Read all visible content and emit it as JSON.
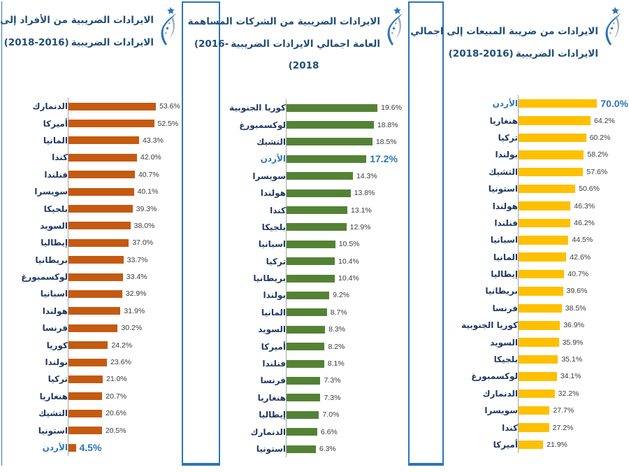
{
  "page": {
    "background": "#FFFFFF",
    "frame_color": "#2E75B6",
    "label_color": "#1F3864",
    "value_color": "#3A3A3A",
    "title_color": "#1F4E79",
    "highlight_color": "#2E75B6"
  },
  "icons": {
    "logo": "org-logo-icon",
    "logo_colors": [
      "#2E75B6",
      "#9FB1BC"
    ]
  },
  "chart_data": [
    {
      "type": "bar",
      "orientation": "horizontal",
      "legend": "none",
      "grid": false,
      "title_lines": [
        {
          "rtl": "الايرادات الضريبية من الأفراد إلى اجمالي",
          "ltr": ""
        },
        {
          "rtl": "الايرادات الضريبية",
          "ltr": "(2018-2016)"
        }
      ],
      "bar_color": "#C55A11",
      "xlim": [
        0,
        66
      ],
      "rows": [
        {
          "label": "الدنمارك",
          "value": 53.6,
          "display": "53.6%",
          "highlight": false
        },
        {
          "label": "أميركا",
          "value": 52.5,
          "display": "52.5%",
          "highlight": false
        },
        {
          "label": "المانيا",
          "value": 43.3,
          "display": "43.3%",
          "highlight": false
        },
        {
          "label": "كندا",
          "value": 42.0,
          "display": "42.0%",
          "highlight": false
        },
        {
          "label": "فنلندا",
          "value": 40.7,
          "display": "40.7%",
          "highlight": false
        },
        {
          "label": "سويسرا",
          "value": 40.1,
          "display": "40.1%",
          "highlight": false
        },
        {
          "label": "بلجيكا",
          "value": 39.3,
          "display": "39.3%",
          "highlight": false
        },
        {
          "label": "السويد",
          "value": 38.0,
          "display": "38.0%",
          "highlight": false
        },
        {
          "label": "إيطاليا",
          "value": 37.0,
          "display": "37.0%",
          "highlight": false
        },
        {
          "label": "بريطانيا",
          "value": 33.7,
          "display": "33.7%",
          "highlight": false
        },
        {
          "label": "لوكسمبورغ",
          "value": 33.4,
          "display": "33.4%",
          "highlight": false
        },
        {
          "label": "اسبانيا",
          "value": 32.9,
          "display": "32.9%",
          "highlight": false
        },
        {
          "label": "هولندا",
          "value": 31.9,
          "display": "31.9%",
          "highlight": false
        },
        {
          "label": "فرنسا",
          "value": 30.2,
          "display": "30.2%",
          "highlight": false
        },
        {
          "label": "كوريا",
          "value": 24.2,
          "display": "24.2%",
          "highlight": false
        },
        {
          "label": "بولندا",
          "value": 23.6,
          "display": "23.6%",
          "highlight": false
        },
        {
          "label": "تركيا",
          "value": 21.0,
          "display": "21.0%",
          "highlight": false
        },
        {
          "label": "هنغاريا",
          "value": 20.7,
          "display": "20.7%",
          "highlight": false
        },
        {
          "label": "التشيك",
          "value": 20.6,
          "display": "20.6%",
          "highlight": false
        },
        {
          "label": "استونيا",
          "value": 20.5,
          "display": "20.5%",
          "highlight": false
        },
        {
          "label": "الأردن",
          "value": 4.5,
          "display": "4.5%",
          "highlight": true
        }
      ]
    },
    {
      "type": "bar",
      "orientation": "horizontal",
      "legend": "none",
      "grid": false,
      "title_lines": [
        {
          "rtl": "الايرادات الضريبية من الشركات المساهمة",
          "ltr": ""
        },
        {
          "rtl": "العامة اجمالي الايرادات الضريبية",
          "ltr": "(2016-"
        },
        {
          "rtl": "",
          "ltr": "(2018"
        }
      ],
      "bar_color": "#548235",
      "xlim": [
        0,
        25
      ],
      "rows": [
        {
          "label": "كوريا الجنوبية",
          "value": 19.6,
          "display": "19.6%",
          "highlight": false
        },
        {
          "label": "لوكسمبورغ",
          "value": 18.8,
          "display": "18.8%",
          "highlight": false
        },
        {
          "label": "التشيك",
          "value": 18.5,
          "display": "18.5%",
          "highlight": false
        },
        {
          "label": "الأردن",
          "value": 17.2,
          "display": "17.2%",
          "highlight": true
        },
        {
          "label": "سويسرا",
          "value": 14.3,
          "display": "14.3%",
          "highlight": false
        },
        {
          "label": "هولندا",
          "value": 13.8,
          "display": "13.8%",
          "highlight": false
        },
        {
          "label": "كندا",
          "value": 13.1,
          "display": "13.1%",
          "highlight": false
        },
        {
          "label": "بلجيكا",
          "value": 12.9,
          "display": "12.9%",
          "highlight": false
        },
        {
          "label": "اسبانيا",
          "value": 10.5,
          "display": "10.5%",
          "highlight": false
        },
        {
          "label": "تركيا",
          "value": 10.4,
          "display": "10.4%",
          "highlight": false
        },
        {
          "label": "بريطانيا",
          "value": 10.4,
          "display": "10.4%",
          "highlight": false
        },
        {
          "label": "بولندا",
          "value": 9.2,
          "display": "9.2%",
          "highlight": false
        },
        {
          "label": "المانيا",
          "value": 8.7,
          "display": "8.7%",
          "highlight": false
        },
        {
          "label": "السويد",
          "value": 8.3,
          "display": "8.3%",
          "highlight": false
        },
        {
          "label": "أميركا",
          "value": 8.2,
          "display": "8.2%",
          "highlight": false
        },
        {
          "label": "فنلندا",
          "value": 8.1,
          "display": "8.1%",
          "highlight": false
        },
        {
          "label": "فرنسا",
          "value": 7.3,
          "display": "7.3%",
          "highlight": false
        },
        {
          "label": "هنغاريا",
          "value": 7.3,
          "display": "7.3%",
          "highlight": false
        },
        {
          "label": "إيطاليا",
          "value": 7.0,
          "display": "7.0%",
          "highlight": false
        },
        {
          "label": "الدنمارك",
          "value": 6.6,
          "display": "6.6%",
          "highlight": false
        },
        {
          "label": "استونيا",
          "value": 6.3,
          "display": "6.3%",
          "highlight": false
        }
      ]
    },
    {
      "type": "bar",
      "orientation": "horizontal",
      "legend": "none",
      "grid": false,
      "title_lines": [
        {
          "rtl": "الايرادات من ضريبة المبيعات إلى اجمالي",
          "ltr": ""
        },
        {
          "rtl": "الايرادات الضريبية",
          "ltr": "(2018-2016)"
        }
      ],
      "bar_color": "#FFC000",
      "xlim": [
        0,
        91
      ],
      "rows": [
        {
          "label": "الأردن",
          "value": 70.0,
          "display": "70.0%",
          "highlight": true
        },
        {
          "label": "هنغاريا",
          "value": 64.2,
          "display": "64.2%",
          "highlight": false
        },
        {
          "label": "تركيا",
          "value": 60.2,
          "display": "60.2%",
          "highlight": false
        },
        {
          "label": "بولندا",
          "value": 58.2,
          "display": "58.2%",
          "highlight": false
        },
        {
          "label": "التشيك",
          "value": 57.6,
          "display": "57.6%",
          "highlight": false
        },
        {
          "label": "استونيا",
          "value": 50.6,
          "display": "50.6%",
          "highlight": false
        },
        {
          "label": "هولندا",
          "value": 46.3,
          "display": "46.3%",
          "highlight": false
        },
        {
          "label": "فنلندا",
          "value": 46.2,
          "display": "46.2%",
          "highlight": false
        },
        {
          "label": "اسبانيا",
          "value": 44.5,
          "display": "44.5%",
          "highlight": false
        },
        {
          "label": "المانيا",
          "value": 42.6,
          "display": "42.6%",
          "highlight": false
        },
        {
          "label": "إيطاليا",
          "value": 40.7,
          "display": "40.7%",
          "highlight": false
        },
        {
          "label": "بريطانيا",
          "value": 39.6,
          "display": "39.6%",
          "highlight": false
        },
        {
          "label": "فرنسا",
          "value": 38.5,
          "display": "38.5%",
          "highlight": false
        },
        {
          "label": "كوريا الجنوبية",
          "value": 36.9,
          "display": "36.9%",
          "highlight": false
        },
        {
          "label": "السويد",
          "value": 35.9,
          "display": "35.9%",
          "highlight": false
        },
        {
          "label": "بلجيكا",
          "value": 35.1,
          "display": "35.1%",
          "highlight": false
        },
        {
          "label": "لوكسمبورغ",
          "value": 34.1,
          "display": "34.1%",
          "highlight": false
        },
        {
          "label": "الدنمارك",
          "value": 32.2,
          "display": "32.2%",
          "highlight": false
        },
        {
          "label": "سويسرا",
          "value": 27.7,
          "display": "27.7%",
          "highlight": false
        },
        {
          "label": "كندا",
          "value": 27.2,
          "display": "27.2%",
          "highlight": false
        },
        {
          "label": "أميركا",
          "value": 21.9,
          "display": "21.9%",
          "highlight": false
        }
      ]
    }
  ]
}
